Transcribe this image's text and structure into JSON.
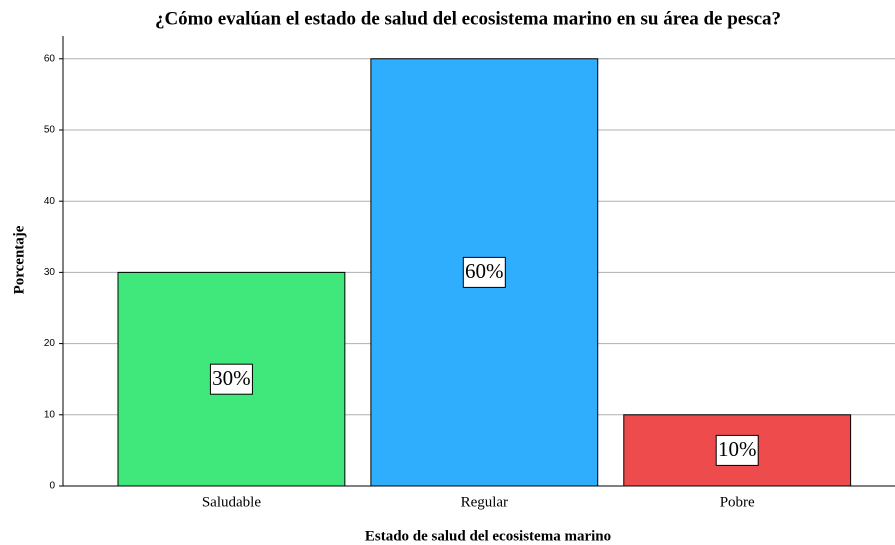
{
  "chart_data": {
    "type": "bar",
    "title": "¿Cómo evalúan el estado de salud del ecosistema marino en su área de pesca?",
    "x_label": "Estado de salud del ecosistema marino",
    "y_label": "Porcentaje",
    "categories": [
      "Saludable",
      "Regular",
      "Pobre"
    ],
    "values": [
      30,
      60,
      10
    ],
    "value_labels": [
      "30%",
      "60%",
      "10%"
    ],
    "colors": [
      "#40e87c",
      "#30aefe",
      "#ee4b4c"
    ],
    "ylim": [
      0,
      63.2
    ],
    "yticks": [
      0,
      10,
      20,
      30,
      40,
      50,
      60
    ],
    "grid": true
  }
}
